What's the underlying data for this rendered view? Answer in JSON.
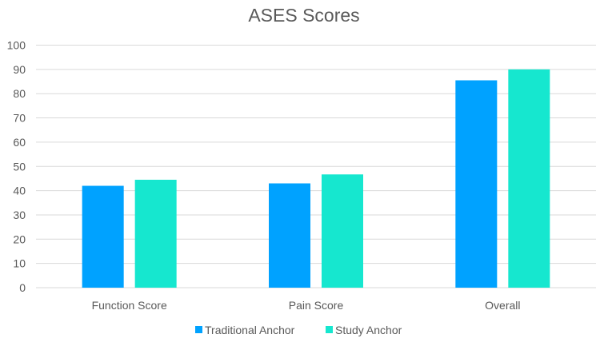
{
  "chart_data": {
    "type": "bar",
    "title": "ASES Scores",
    "xlabel": "",
    "ylabel": "",
    "ylim": [
      0,
      100
    ],
    "yticks": [
      0,
      10,
      20,
      30,
      40,
      50,
      60,
      70,
      80,
      90,
      100
    ],
    "grid": true,
    "legend_position": "bottom",
    "categories": [
      "Function Score",
      "Pain Score",
      "Overall"
    ],
    "series": [
      {
        "name": "Traditional Anchor",
        "color": "#00a2ff",
        "values": [
          42,
          43,
          85.5
        ]
      },
      {
        "name": "Study Anchor",
        "color": "#16e7cf",
        "values": [
          44.5,
          46.7,
          90
        ]
      }
    ]
  }
}
